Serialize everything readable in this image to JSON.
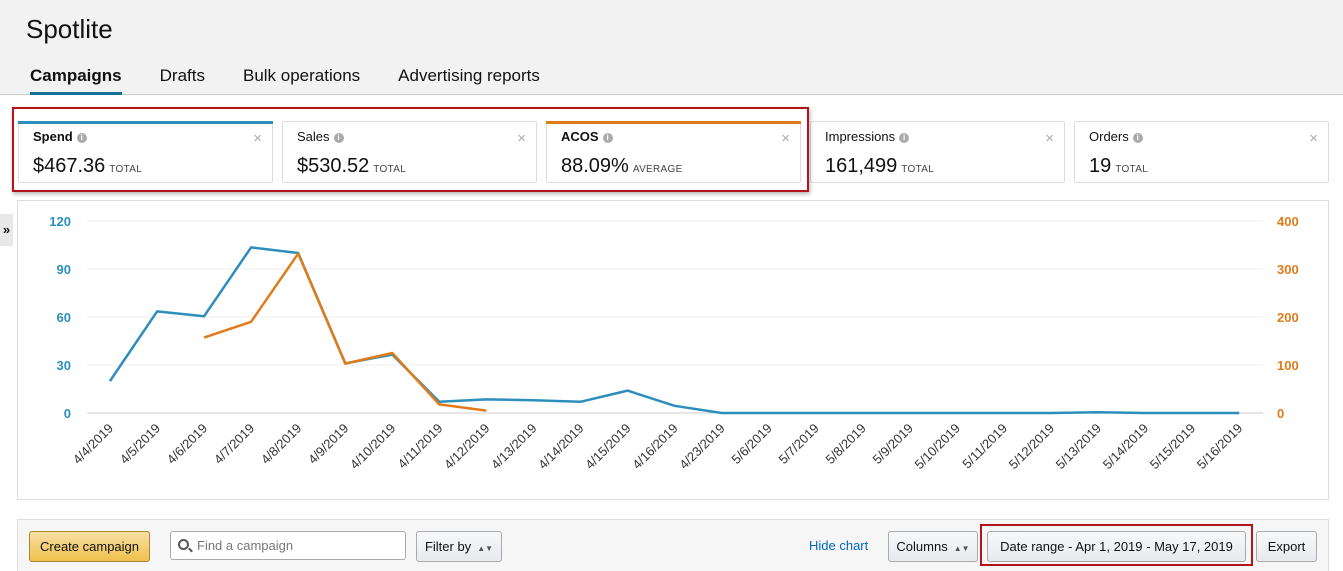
{
  "app": {
    "title": "Spotlite"
  },
  "tabs": [
    {
      "label": "Campaigns",
      "active": true
    },
    {
      "label": "Drafts",
      "active": false
    },
    {
      "label": "Bulk operations",
      "active": false
    },
    {
      "label": "Advertising reports",
      "active": false
    }
  ],
  "metrics": [
    {
      "label": "Spend",
      "value": "$467.36",
      "unit": "TOTAL",
      "selected": true,
      "color": "#2d8ebc"
    },
    {
      "label": "Sales",
      "value": "$530.52",
      "unit": "TOTAL",
      "selected": false
    },
    {
      "label": "ACOS",
      "value": "88.09%",
      "unit": "AVERAGE",
      "selected": true,
      "color": "#e07b1a"
    },
    {
      "label": "Impressions",
      "value": "161,499",
      "unit": "TOTAL",
      "selected": false
    },
    {
      "label": "Orders",
      "value": "19",
      "unit": "TOTAL",
      "selected": false
    }
  ],
  "icons": {
    "info": "info-icon",
    "close": "close-icon",
    "expand": "double-chevron-right-icon",
    "search": "search-icon"
  },
  "colors": {
    "spend": "#2d8ebc",
    "acos": "#e07b1a",
    "highlight": "#b3141c",
    "primary_button": "#f0c14b",
    "link": "#0066c0"
  },
  "chart_data": {
    "type": "line",
    "categories": [
      "4/4/2019",
      "4/5/2019",
      "4/6/2019",
      "4/7/2019",
      "4/8/2019",
      "4/9/2019",
      "4/10/2019",
      "4/11/2019",
      "4/12/2019",
      "4/13/2019",
      "4/14/2019",
      "4/15/2019",
      "4/16/2019",
      "4/23/2019",
      "5/6/2019",
      "5/7/2019",
      "5/8/2019",
      "5/9/2019",
      "5/10/2019",
      "5/11/2019",
      "5/12/2019",
      "5/13/2019",
      "5/14/2019",
      "5/15/2019",
      "5/16/2019"
    ],
    "y_left": {
      "ticks": [
        "0",
        "30",
        "60",
        "90",
        "120"
      ],
      "range": [
        0,
        120
      ]
    },
    "y_right": {
      "ticks": [
        "0",
        "100",
        "200",
        "300",
        "400"
      ],
      "range": [
        0,
        400
      ]
    },
    "series": [
      {
        "axis": "left",
        "color": "#2d8ebc",
        "values": [
          20,
          63.5,
          60.5,
          103.5,
          100,
          31,
          36.5,
          7,
          8.5,
          8,
          7,
          14,
          4.5,
          0,
          0,
          0,
          0,
          0,
          0,
          0,
          0,
          0.5,
          0,
          0,
          0
        ]
      },
      {
        "axis": "right",
        "color": "#e07b1a",
        "values": [
          null,
          null,
          157,
          190,
          332,
          103,
          125,
          18,
          5,
          null,
          null,
          null,
          null,
          null,
          null,
          null,
          null,
          null,
          null,
          null,
          null,
          null,
          null,
          null,
          null
        ]
      }
    ],
    "grid": true
  },
  "toolbar": {
    "create_label": "Create campaign",
    "search_placeholder": "Find a campaign",
    "filter_label": "Filter by",
    "hide_chart_label": "Hide chart",
    "columns_label": "Columns",
    "date_range_label": "Date range - Apr 1, 2019 - May 17, 2019",
    "export_label": "Export"
  }
}
